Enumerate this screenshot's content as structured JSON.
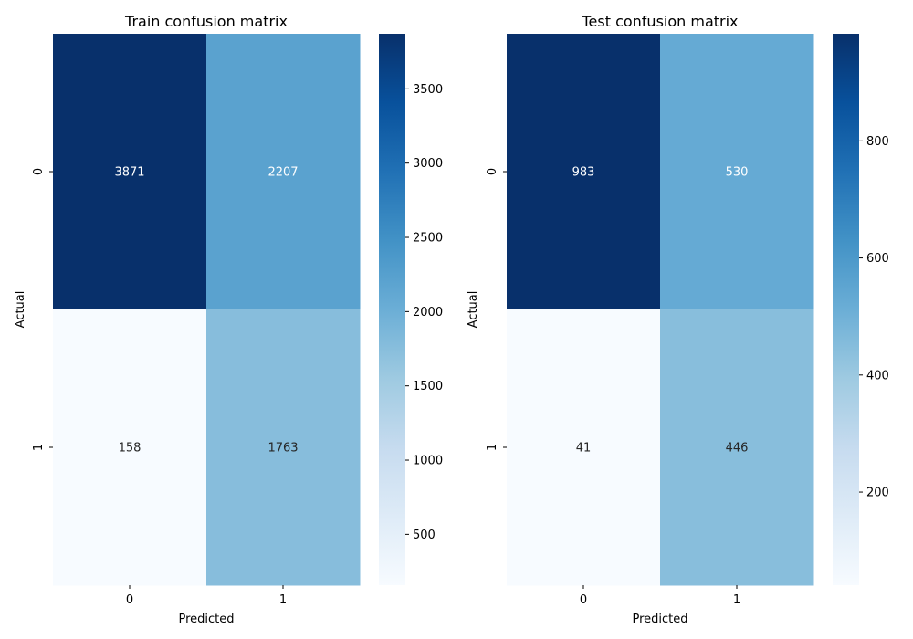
{
  "chart_data": [
    {
      "type": "heatmap",
      "title": "Train confusion matrix",
      "xlabel": "Predicted",
      "ylabel": "Actual",
      "x_categories": [
        "0",
        "1"
      ],
      "y_categories": [
        "0",
        "1"
      ],
      "values": [
        [
          3871,
          2207
        ],
        [
          158,
          1763
        ]
      ],
      "colormap": "Blues",
      "colorbar": {
        "range": [
          158,
          3871
        ],
        "ticks": [
          500,
          1000,
          1500,
          2000,
          2500,
          3000,
          3500
        ]
      }
    },
    {
      "type": "heatmap",
      "title": "Test confusion matrix",
      "xlabel": "Predicted",
      "ylabel": "Actual",
      "x_categories": [
        "0",
        "1"
      ],
      "y_categories": [
        "0",
        "1"
      ],
      "values": [
        [
          983,
          530
        ],
        [
          41,
          446
        ]
      ],
      "colormap": "Blues",
      "colorbar": {
        "range": [
          41,
          983
        ],
        "ticks": [
          200,
          400,
          600,
          800
        ]
      }
    }
  ]
}
